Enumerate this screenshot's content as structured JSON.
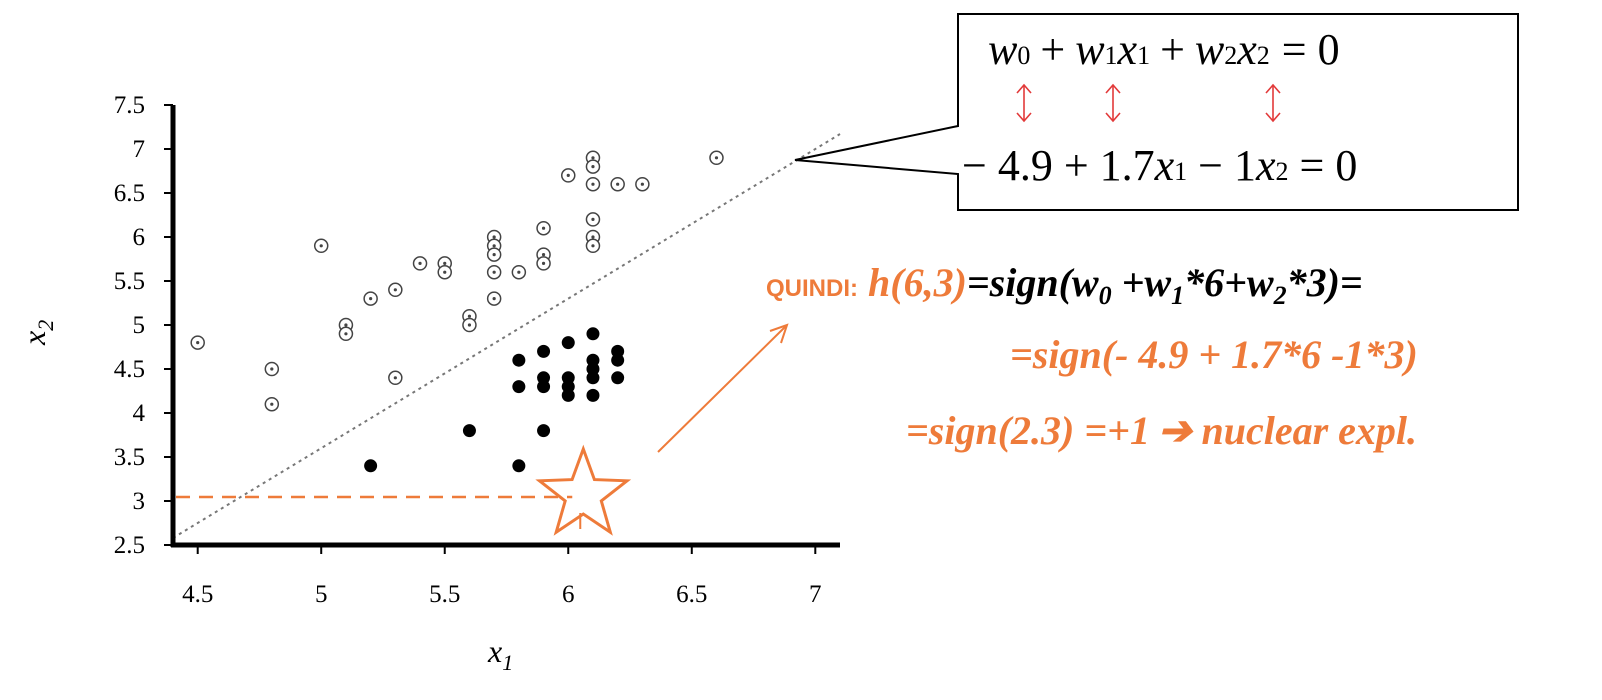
{
  "chart_data": {
    "type": "scatter",
    "xlabel": "x1",
    "ylabel": "x2",
    "xlim": [
      4.4,
      7.1
    ],
    "ylim": [
      2.5,
      7.5
    ],
    "x_ticks": [
      "4.5",
      "5",
      "5.5",
      "6",
      "6.5",
      "7"
    ],
    "y_ticks": [
      "2.5",
      "3",
      "3.5",
      "4",
      "4.5",
      "5",
      "5.5",
      "6",
      "6.5",
      "7",
      "7.5"
    ],
    "grid": false,
    "series": [
      {
        "marker": "open-circle-dot",
        "points": [
          [
            4.5,
            4.8
          ],
          [
            4.8,
            4.5
          ],
          [
            4.8,
            4.1
          ],
          [
            5.0,
            5.9
          ],
          [
            5.1,
            5.0
          ],
          [
            5.1,
            4.9
          ],
          [
            5.2,
            5.3
          ],
          [
            5.3,
            5.4
          ],
          [
            5.3,
            4.4
          ],
          [
            5.4,
            5.7
          ],
          [
            5.5,
            5.7
          ],
          [
            5.5,
            5.6
          ],
          [
            5.6,
            5.1
          ],
          [
            5.6,
            5.0
          ],
          [
            5.7,
            6.0
          ],
          [
            5.7,
            5.9
          ],
          [
            5.7,
            5.8
          ],
          [
            5.7,
            5.6
          ],
          [
            5.7,
            5.3
          ],
          [
            5.8,
            5.6
          ],
          [
            5.9,
            6.1
          ],
          [
            5.9,
            5.8
          ],
          [
            5.9,
            5.7
          ],
          [
            6.0,
            6.7
          ],
          [
            6.1,
            6.9
          ],
          [
            6.1,
            6.8
          ],
          [
            6.1,
            6.6
          ],
          [
            6.1,
            6.2
          ],
          [
            6.1,
            6.0
          ],
          [
            6.1,
            5.9
          ],
          [
            6.2,
            6.6
          ],
          [
            6.3,
            6.6
          ],
          [
            6.6,
            6.9
          ]
        ]
      },
      {
        "marker": "filled-circle",
        "points": [
          [
            5.2,
            3.4
          ],
          [
            5.6,
            3.8
          ],
          [
            5.8,
            4.6
          ],
          [
            5.8,
            4.3
          ],
          [
            5.8,
            3.4
          ],
          [
            5.9,
            4.7
          ],
          [
            5.9,
            4.4
          ],
          [
            5.9,
            4.3
          ],
          [
            5.9,
            3.8
          ],
          [
            6.0,
            4.8
          ],
          [
            6.0,
            4.4
          ],
          [
            6.0,
            4.3
          ],
          [
            6.0,
            4.2
          ],
          [
            6.1,
            4.9
          ],
          [
            6.1,
            4.6
          ],
          [
            6.1,
            4.5
          ],
          [
            6.1,
            4.4
          ],
          [
            6.1,
            4.2
          ],
          [
            6.2,
            4.7
          ],
          [
            6.2,
            4.6
          ],
          [
            6.2,
            4.4
          ]
        ]
      }
    ],
    "decision_boundary": {
      "w0": -4.9,
      "w1": 1.7,
      "w2": -1
    },
    "query_point": [
      6,
      3
    ]
  },
  "equation": {
    "w0": "w",
    "w0_sub": "0",
    "w1": "w",
    "w1_sub": "1",
    "x1": "x",
    "x1_sub": "1",
    "w2": "w",
    "w2_sub": "2",
    "x2": "x",
    "x2_sub": "2",
    "plus": "+",
    "equals_zero": "= 0",
    "row2_a": "− 4.9 + 1.7",
    "row2_b": "x",
    "row2_b_sub": "1",
    "row2_c": " − 1",
    "row2_d": "x",
    "row2_d_sub": "2",
    "row2_e": " = 0"
  },
  "calc": {
    "quindi": "QUINDI:",
    "h": "h(6,3)",
    "eq1": "=sign(w",
    "sub0": "0",
    "plus_w": " +w",
    "sub1": "1",
    "times6": "*6+w",
    "sub2": "2",
    "times3": "*3",
    "close": ")=",
    "line2": "=sign(- 4.9 + 1.7*6  -1*3)",
    "line3_a": "=sign(2.3) =+1",
    "arrow": "➔",
    "line3_b": " nuclear expl."
  },
  "colors": {
    "accent": "#ee7b3a",
    "arrow_red": "#e23a3a"
  }
}
